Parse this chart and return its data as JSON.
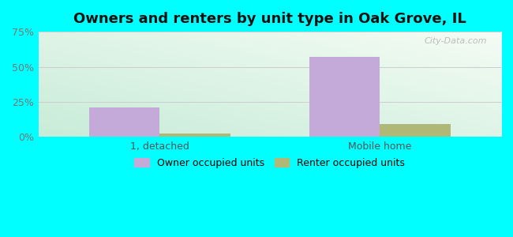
{
  "title": "Owners and renters by unit type in Oak Grove, IL",
  "categories": [
    "1, detached",
    "Mobile home"
  ],
  "owner_values": [
    21.0,
    57.0
  ],
  "renter_values": [
    2.5,
    9.0
  ],
  "owner_color": "#c4aad8",
  "renter_color": "#b0b878",
  "ylim": [
    0,
    75
  ],
  "yticks": [
    0,
    25,
    50,
    75
  ],
  "yticklabels": [
    "0%",
    "25%",
    "50%",
    "75%"
  ],
  "bar_width": 0.32,
  "outer_bg": "#00ffff",
  "title_fontsize": 13,
  "tick_fontsize": 9,
  "legend_fontsize": 9,
  "watermark_text": "City-Data.com",
  "legend_owner": "Owner occupied units",
  "legend_renter": "Renter occupied units"
}
